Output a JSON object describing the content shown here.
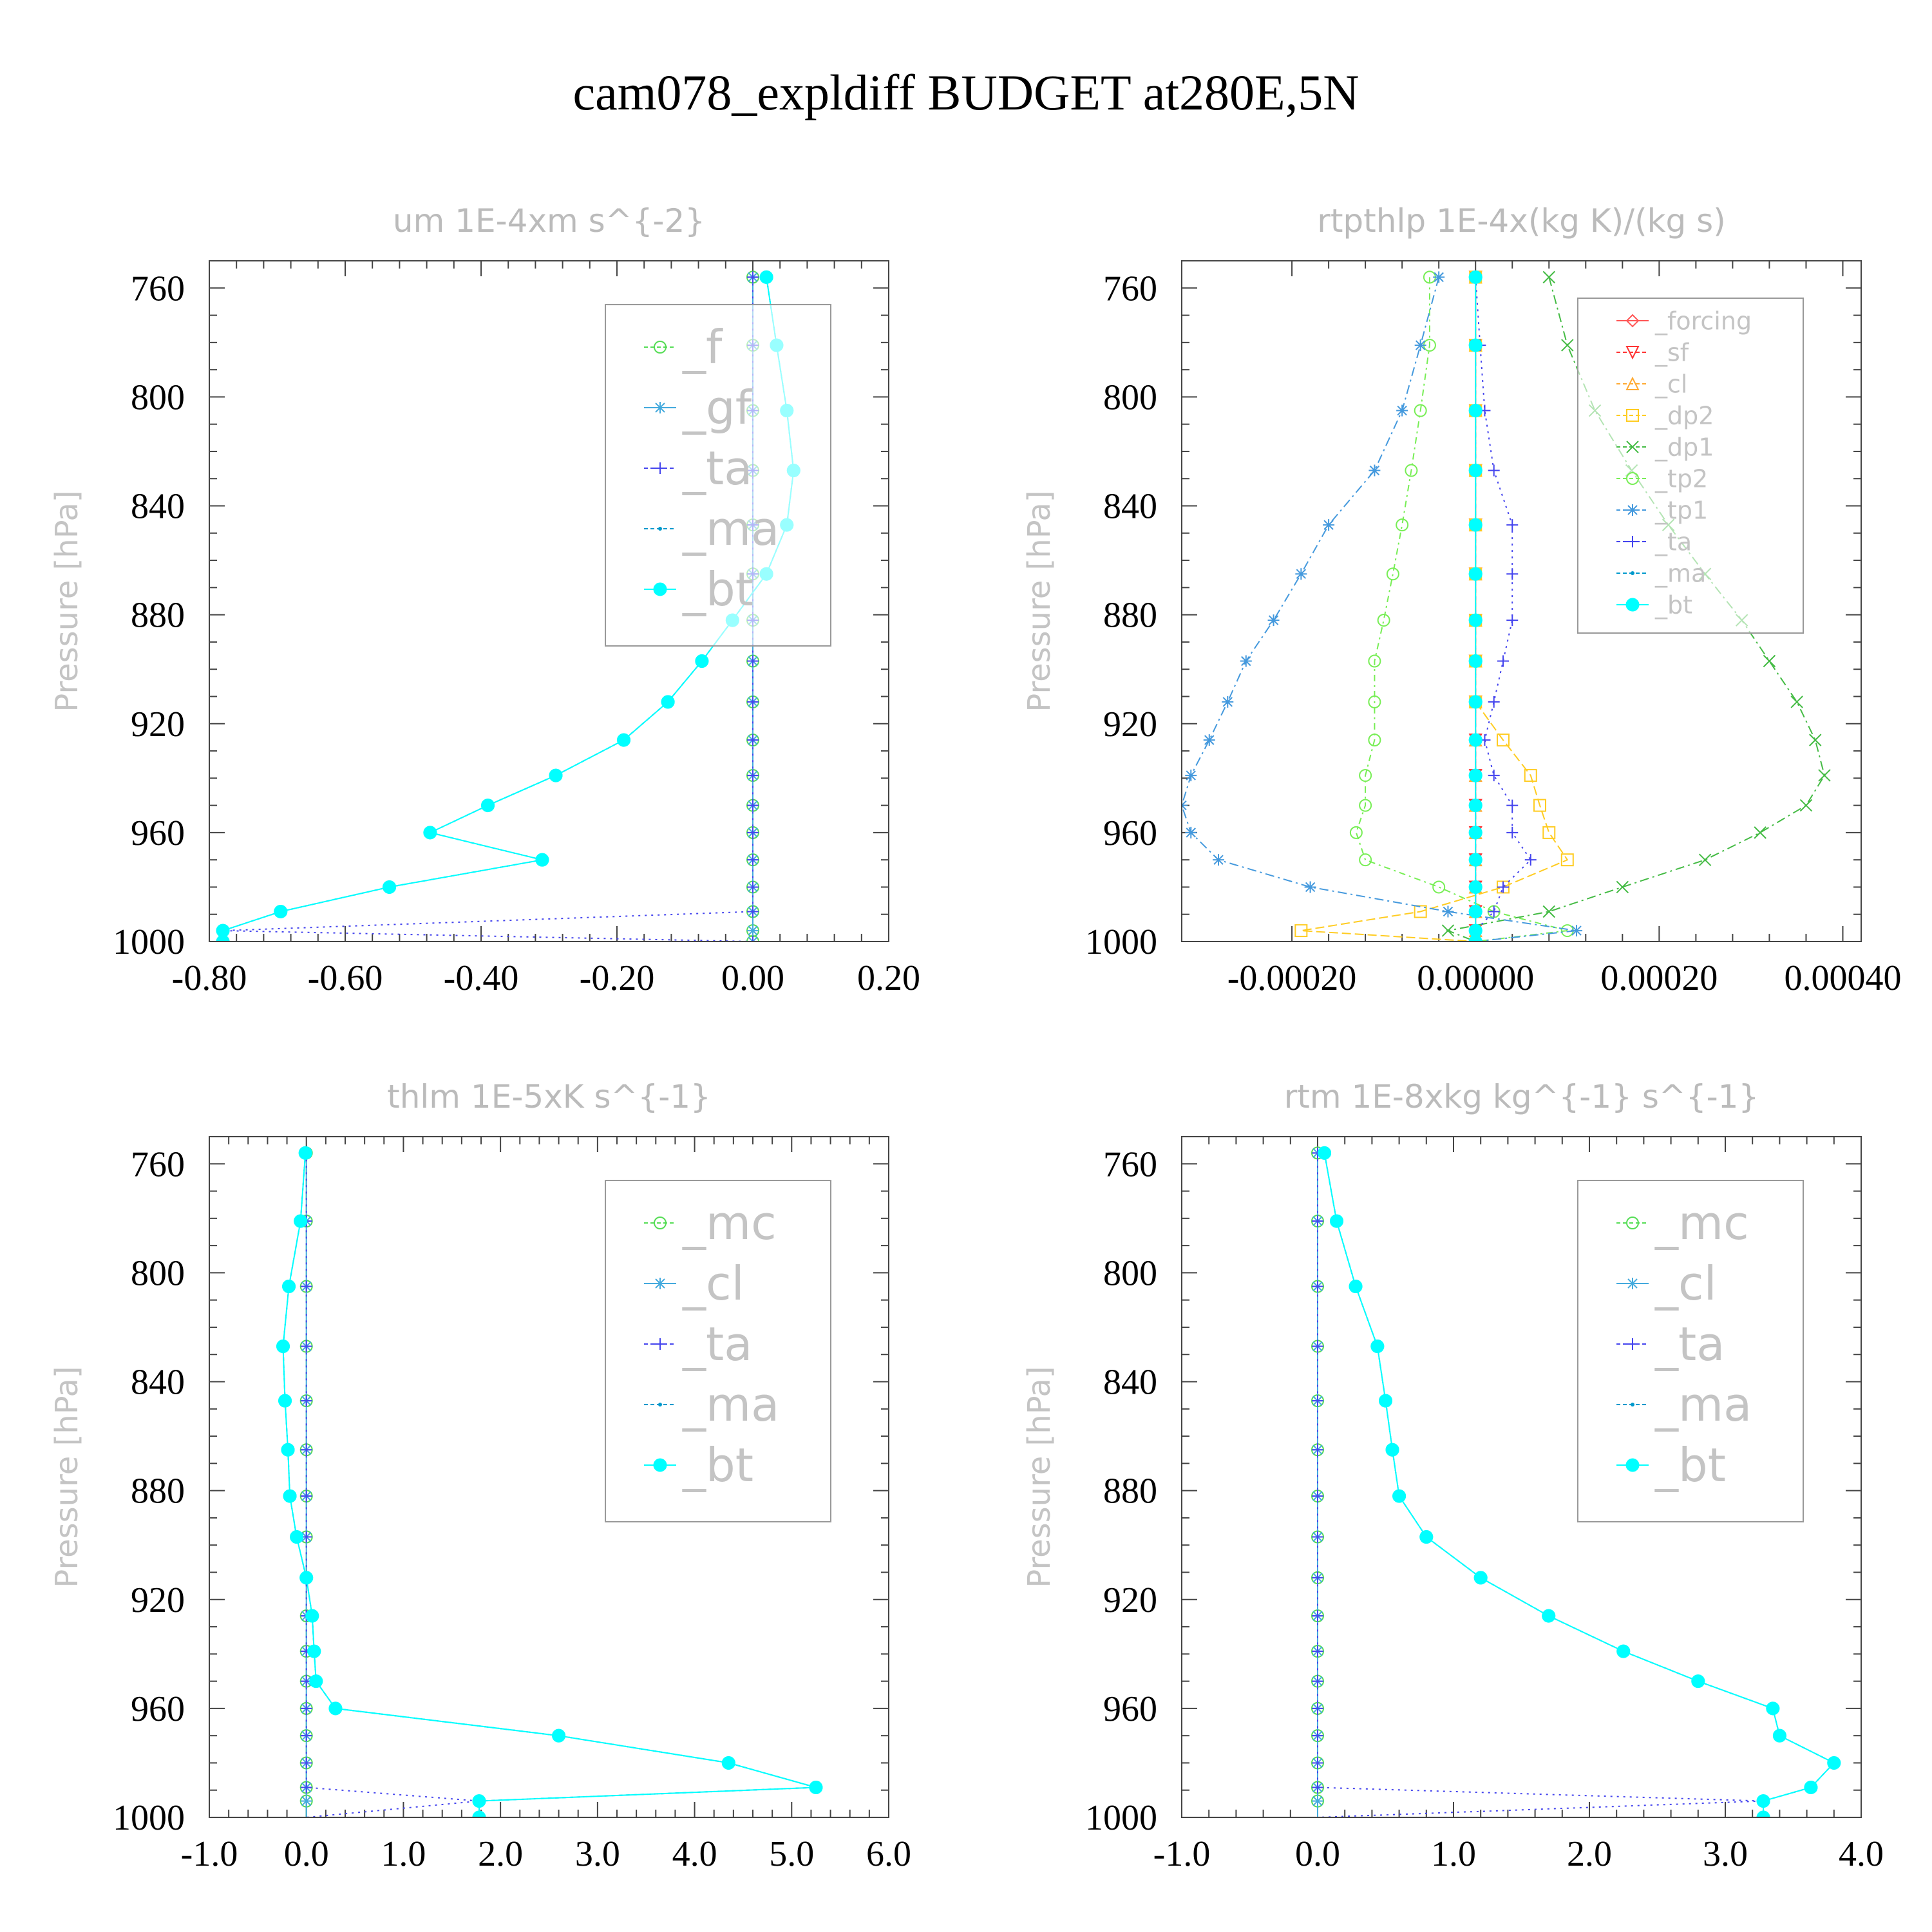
{
  "title": "cam078_expldiff  BUDGET at280E,5N",
  "colors": {
    "f": "#55dd55",
    "gf": "#44aadd",
    "ta": "#4444ee",
    "ma": "#0099cc",
    "bt": "#00ffff",
    "forcing": "#ff5555",
    "sf": "#ff3333",
    "cl_warm": "#ffaa33",
    "dp2": "#ffcc22",
    "dp1": "#44bb44",
    "tp2": "#77ee55",
    "tp1": "#4499dd",
    "mc": "#55dd55",
    "cl": "#44aadd"
  },
  "chart_data": [
    {
      "type": "line",
      "title": "um   1E-4xm s^{-2}",
      "ylabel": "Pressure [hPa]",
      "xlim": [
        -0.8,
        0.2
      ],
      "ylim": [
        750,
        1000
      ],
      "xticks": [
        -0.8,
        -0.6,
        -0.4,
        -0.2,
        0.0,
        0.2
      ],
      "xtick_labels": [
        "-0.80",
        "-0.60",
        "-0.40",
        "-0.20",
        "0.00",
        "0.20"
      ],
      "yticks": [
        760,
        800,
        840,
        880,
        920,
        960,
        1000
      ],
      "ytick_labels": [
        "760",
        "800",
        "840",
        "880",
        "920",
        "960",
        "1000"
      ],
      "legend_position": "top-right",
      "legend_size": "large",
      "pressure": [
        756,
        781,
        805,
        827,
        847,
        865,
        882,
        897,
        912,
        926,
        939,
        950,
        960,
        970,
        980,
        989,
        996,
        1000
      ],
      "series": [
        {
          "name": "_f",
          "key": "f",
          "marker": "circle-open",
          "dash": "12,8",
          "values": [
            0,
            0,
            0,
            0,
            0,
            0,
            0,
            0,
            0,
            0,
            0,
            0,
            0,
            0,
            0,
            0,
            0,
            0
          ]
        },
        {
          "name": "_gf",
          "key": "gf",
          "marker": "star",
          "dash": "",
          "values": [
            0,
            0,
            0,
            0,
            0,
            0,
            0,
            0,
            0,
            0,
            0,
            0,
            0,
            0,
            0,
            0,
            0,
            0
          ]
        },
        {
          "name": "_ta",
          "key": "ta",
          "marker": "plus",
          "dash": "3,7",
          "values": [
            0,
            0,
            0,
            0,
            0,
            0,
            0,
            0,
            0,
            0,
            0,
            0,
            0,
            0,
            0,
            0,
            -0.78,
            0
          ]
        },
        {
          "name": "_ma",
          "key": "ma",
          "marker": "dot",
          "dash": "6,5",
          "values": [
            0.02,
            0.035,
            0.05,
            0.06,
            0.05,
            0.02,
            -0.03,
            -0.075,
            -0.125,
            -0.19,
            -0.29,
            -0.39,
            -0.475,
            -0.31,
            -0.535,
            -0.695,
            -0.78,
            -0.78
          ]
        },
        {
          "name": "_bt",
          "key": "bt",
          "marker": "filled",
          "dash": "",
          "values": [
            0.02,
            0.035,
            0.05,
            0.06,
            0.05,
            0.02,
            -0.03,
            -0.075,
            -0.125,
            -0.19,
            -0.29,
            -0.39,
            -0.475,
            -0.31,
            -0.535,
            -0.695,
            -0.78,
            -0.78
          ]
        }
      ]
    },
    {
      "type": "line",
      "title": "rtpthlp   1E-4x(kg K)/(kg s)",
      "ylabel": "Pressure [hPa]",
      "xlim": [
        -0.00032,
        0.00042
      ],
      "ylim": [
        750,
        1000
      ],
      "xticks": [
        -0.0002,
        0.0,
        0.0002,
        0.0004
      ],
      "xtick_labels": [
        "-0.00020",
        "0.00000",
        "0.00020",
        "0.00040"
      ],
      "yticks": [
        760,
        800,
        840,
        880,
        920,
        960,
        1000
      ],
      "ytick_labels": [
        "760",
        "800",
        "840",
        "880",
        "920",
        "960",
        "1000"
      ],
      "legend_position": "top-right",
      "legend_size": "small",
      "pressure": [
        756,
        781,
        805,
        827,
        847,
        865,
        882,
        897,
        912,
        926,
        939,
        950,
        960,
        970,
        980,
        989,
        996,
        1000
      ],
      "series": [
        {
          "name": "_forcing",
          "key": "forcing",
          "marker": "diamond-open",
          "dash": "",
          "values": [
            0,
            0,
            0,
            0,
            0,
            0,
            0,
            0,
            0,
            0,
            0,
            0,
            0,
            0,
            0,
            0,
            0,
            0
          ]
        },
        {
          "name": "_sf",
          "key": "sf",
          "marker": "tri-down-open",
          "dash": "10,6",
          "values": [
            0,
            0,
            0,
            0,
            0,
            0,
            0,
            0,
            0,
            0,
            0,
            0,
            0,
            0,
            0,
            0,
            0,
            0
          ]
        },
        {
          "name": "_cl",
          "key": "cl_warm",
          "marker": "tri-up-open",
          "dash": "3,6",
          "values": [
            0,
            0,
            0,
            0,
            0,
            0,
            0,
            0,
            0,
            0,
            0,
            0,
            0,
            0,
            0,
            0,
            0,
            0
          ]
        },
        {
          "name": "_dp2",
          "key": "dp2",
          "marker": "square-open",
          "dash": "14,6",
          "values": [
            0,
            0,
            0,
            0,
            0,
            0,
            0,
            0,
            0,
            3e-05,
            6e-05,
            7e-05,
            8e-05,
            0.0001,
            3e-05,
            -6e-05,
            -0.00019,
            0
          ]
        },
        {
          "name": "_dp1",
          "key": "dp1",
          "marker": "x",
          "dash": "14,6,3,6",
          "values": [
            8e-05,
            0.0001,
            0.00013,
            0.00017,
            0.00021,
            0.00025,
            0.00029,
            0.00032,
            0.00035,
            0.00037,
            0.00038,
            0.00036,
            0.00031,
            0.00025,
            0.00016,
            8e-05,
            -3e-05,
            0
          ]
        },
        {
          "name": "_tp2",
          "key": "tp2",
          "marker": "circle-open",
          "dash": "10,6,3,6",
          "values": [
            -5e-05,
            -5e-05,
            -6e-05,
            -7e-05,
            -8e-05,
            -9e-05,
            -0.0001,
            -0.00011,
            -0.00011,
            -0.00011,
            -0.00012,
            -0.00012,
            -0.00013,
            -0.00012,
            -4e-05,
            2e-05,
            0.0001,
            0
          ]
        },
        {
          "name": "_tp1",
          "key": "tp1",
          "marker": "star",
          "dash": "14,6,3,6",
          "values": [
            -4e-05,
            -6e-05,
            -8e-05,
            -0.00011,
            -0.00016,
            -0.00019,
            -0.00022,
            -0.00025,
            -0.00027,
            -0.00029,
            -0.00031,
            -0.00032,
            -0.00031,
            -0.00028,
            -0.00018,
            -3e-05,
            0.00011,
            0
          ]
        },
        {
          "name": "_ta",
          "key": "ta",
          "marker": "plus",
          "dash": "3,7",
          "values": [
            0,
            5e-06,
            1e-05,
            2e-05,
            4e-05,
            4e-05,
            4e-05,
            3e-05,
            2e-05,
            1e-05,
            2e-05,
            4e-05,
            4e-05,
            6e-05,
            3e-05,
            2e-05,
            0,
            0
          ]
        },
        {
          "name": "_ma",
          "key": "ma",
          "marker": "dot",
          "dash": "6,5",
          "values": [
            0,
            0,
            0,
            0,
            0,
            0,
            0,
            0,
            0,
            0,
            0,
            0,
            0,
            0,
            0,
            0,
            0,
            0
          ]
        },
        {
          "name": "_bt",
          "key": "bt",
          "marker": "filled",
          "dash": "",
          "values": [
            0,
            0,
            0,
            0,
            0,
            0,
            0,
            0,
            0,
            0,
            0,
            0,
            0,
            0,
            0,
            0,
            0,
            0
          ]
        }
      ]
    },
    {
      "type": "line",
      "title": "thlm   1E-5xK s^{-1}",
      "ylabel": "Pressure [hPa]",
      "xlim": [
        -1.0,
        6.0
      ],
      "ylim": [
        750,
        1000
      ],
      "xticks": [
        -1,
        0,
        1,
        2,
        3,
        4,
        5,
        6
      ],
      "xtick_labels": [
        "-1.0",
        "0.0",
        "1.0",
        "2.0",
        "3.0",
        "4.0",
        "5.0",
        "6.0"
      ],
      "yticks": [
        760,
        800,
        840,
        880,
        920,
        960,
        1000
      ],
      "ytick_labels": [
        "760",
        "800",
        "840",
        "880",
        "920",
        "960",
        "1000"
      ],
      "legend_position": "top-right",
      "legend_size": "large",
      "pressure": [
        756,
        781,
        805,
        827,
        847,
        865,
        882,
        897,
        912,
        926,
        939,
        950,
        960,
        970,
        980,
        989,
        994,
        1000
      ],
      "series": [
        {
          "name": "_mc",
          "key": "mc",
          "marker": "circle-open",
          "dash": "12,8",
          "values": [
            0,
            0,
            0,
            0,
            0,
            0,
            0,
            0,
            0,
            0,
            0,
            0,
            0,
            0,
            0,
            0,
            0,
            0
          ]
        },
        {
          "name": "_cl",
          "key": "cl",
          "marker": "star",
          "dash": "",
          "values": [
            0,
            0,
            0,
            0,
            0,
            0,
            0,
            0,
            0,
            0,
            0,
            0,
            0,
            0,
            0,
            0,
            0,
            0
          ]
        },
        {
          "name": "_ta",
          "key": "ta",
          "marker": "plus",
          "dash": "3,7",
          "values": [
            0,
            0,
            0,
            0,
            0,
            0,
            0,
            0,
            0,
            0,
            0,
            0,
            0,
            0,
            0,
            0,
            1.78,
            0
          ]
        },
        {
          "name": "_ma",
          "key": "ma",
          "marker": "dot",
          "dash": "6,5",
          "values": [
            -0.01,
            -0.06,
            -0.18,
            -0.24,
            -0.22,
            -0.19,
            -0.17,
            -0.1,
            0,
            0.06,
            0.08,
            0.1,
            0.3,
            2.6,
            4.35,
            5.25,
            1.78,
            1.78
          ]
        },
        {
          "name": "_bt",
          "key": "bt",
          "marker": "filled",
          "dash": "",
          "values": [
            -0.01,
            -0.06,
            -0.18,
            -0.24,
            -0.22,
            -0.19,
            -0.17,
            -0.1,
            0,
            0.06,
            0.08,
            0.1,
            0.3,
            2.6,
            4.35,
            5.25,
            1.78,
            1.78
          ]
        }
      ]
    },
    {
      "type": "line",
      "title": "rtm   1E-8xkg kg^{-1} s^{-1}",
      "ylabel": "Pressure [hPa]",
      "xlim": [
        -1.0,
        4.0
      ],
      "ylim": [
        750,
        1000
      ],
      "xticks": [
        -1,
        0,
        1,
        2,
        3,
        4
      ],
      "xtick_labels": [
        "-1.0",
        "0.0",
        "1.0",
        "2.0",
        "3.0",
        "4.0"
      ],
      "yticks": [
        760,
        800,
        840,
        880,
        920,
        960,
        1000
      ],
      "ytick_labels": [
        "760",
        "800",
        "840",
        "880",
        "920",
        "960",
        "1000"
      ],
      "legend_position": "top-right",
      "legend_size": "large",
      "pressure": [
        756,
        781,
        805,
        827,
        847,
        865,
        882,
        897,
        912,
        926,
        939,
        950,
        960,
        970,
        980,
        989,
        994,
        1000
      ],
      "series": [
        {
          "name": "_mc",
          "key": "mc",
          "marker": "circle-open",
          "dash": "12,8",
          "values": [
            0,
            0,
            0,
            0,
            0,
            0,
            0,
            0,
            0,
            0,
            0,
            0,
            0,
            0,
            0,
            0,
            0,
            0
          ]
        },
        {
          "name": "_cl",
          "key": "cl",
          "marker": "star",
          "dash": "",
          "values": [
            0,
            0,
            0,
            0,
            0,
            0,
            0,
            0,
            0,
            0,
            0,
            0,
            0,
            0,
            0,
            0,
            0,
            0
          ]
        },
        {
          "name": "_ta",
          "key": "ta",
          "marker": "plus",
          "dash": "3,7",
          "values": [
            0,
            0,
            0,
            0,
            0,
            0,
            0,
            0,
            0,
            0,
            0,
            0,
            0,
            0,
            0,
            0,
            3.28,
            0
          ]
        },
        {
          "name": "_ma",
          "key": "ma",
          "marker": "dot",
          "dash": "6,5",
          "values": [
            0.05,
            0.14,
            0.28,
            0.44,
            0.5,
            0.55,
            0.6,
            0.8,
            1.2,
            1.7,
            2.25,
            2.8,
            3.35,
            3.4,
            3.8,
            3.63,
            3.28,
            3.28
          ]
        },
        {
          "name": "_bt",
          "key": "bt",
          "marker": "filled",
          "dash": "",
          "values": [
            0.05,
            0.14,
            0.28,
            0.44,
            0.5,
            0.55,
            0.6,
            0.8,
            1.2,
            1.7,
            2.25,
            2.8,
            3.35,
            3.4,
            3.8,
            3.63,
            3.28,
            3.28
          ]
        }
      ]
    }
  ]
}
